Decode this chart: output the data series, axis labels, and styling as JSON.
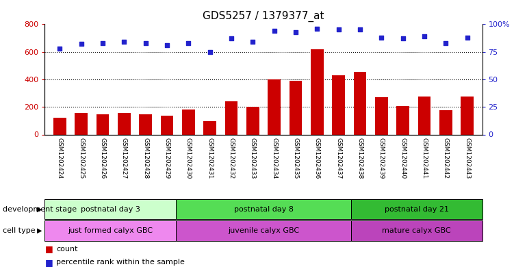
{
  "title": "GDS5257 / 1379377_at",
  "samples": [
    "GSM1202424",
    "GSM1202425",
    "GSM1202426",
    "GSM1202427",
    "GSM1202428",
    "GSM1202429",
    "GSM1202430",
    "GSM1202431",
    "GSM1202432",
    "GSM1202433",
    "GSM1202434",
    "GSM1202435",
    "GSM1202436",
    "GSM1202437",
    "GSM1202438",
    "GSM1202439",
    "GSM1202440",
    "GSM1202441",
    "GSM1202442",
    "GSM1202443"
  ],
  "counts": [
    120,
    155,
    145,
    155,
    148,
    138,
    180,
    95,
    240,
    200,
    400,
    390,
    620,
    430,
    455,
    270,
    205,
    275,
    175,
    275
  ],
  "percentiles": [
    78,
    82,
    83,
    84,
    83,
    81,
    83,
    75,
    87,
    84,
    94,
    93,
    96,
    95,
    95,
    88,
    87,
    89,
    83,
    88
  ],
  "ylim_left": [
    0,
    800
  ],
  "ylim_right": [
    0,
    100
  ],
  "yticks_left": [
    0,
    200,
    400,
    600,
    800
  ],
  "yticks_right": [
    0,
    25,
    50,
    75,
    100
  ],
  "bar_color": "#cc0000",
  "dot_color": "#2222cc",
  "groups": [
    {
      "label": "postnatal day 3",
      "start": 0,
      "end": 6,
      "color": "#ccffcc"
    },
    {
      "label": "postnatal day 8",
      "start": 6,
      "end": 14,
      "color": "#55dd55"
    },
    {
      "label": "postnatal day 21",
      "start": 14,
      "end": 20,
      "color": "#33bb33"
    }
  ],
  "cell_types": [
    {
      "label": "just formed calyx GBC",
      "start": 0,
      "end": 6,
      "color": "#ee88ee"
    },
    {
      "label": "juvenile calyx GBC",
      "start": 6,
      "end": 14,
      "color": "#cc55cc"
    },
    {
      "label": "mature calyx GBC",
      "start": 14,
      "end": 20,
      "color": "#bb44bb"
    }
  ],
  "dev_stage_label": "development stage",
  "cell_type_label": "cell type",
  "legend_count": "count",
  "legend_percentile": "percentile rank within the sample",
  "xlabel_rotation": 270,
  "title_fontsize": 11,
  "gridline_values": [
    200,
    400,
    600
  ],
  "xtick_bg_color": "#cccccc",
  "right_ytick_labels": [
    "0",
    "25",
    "50",
    "75",
    "100%"
  ]
}
